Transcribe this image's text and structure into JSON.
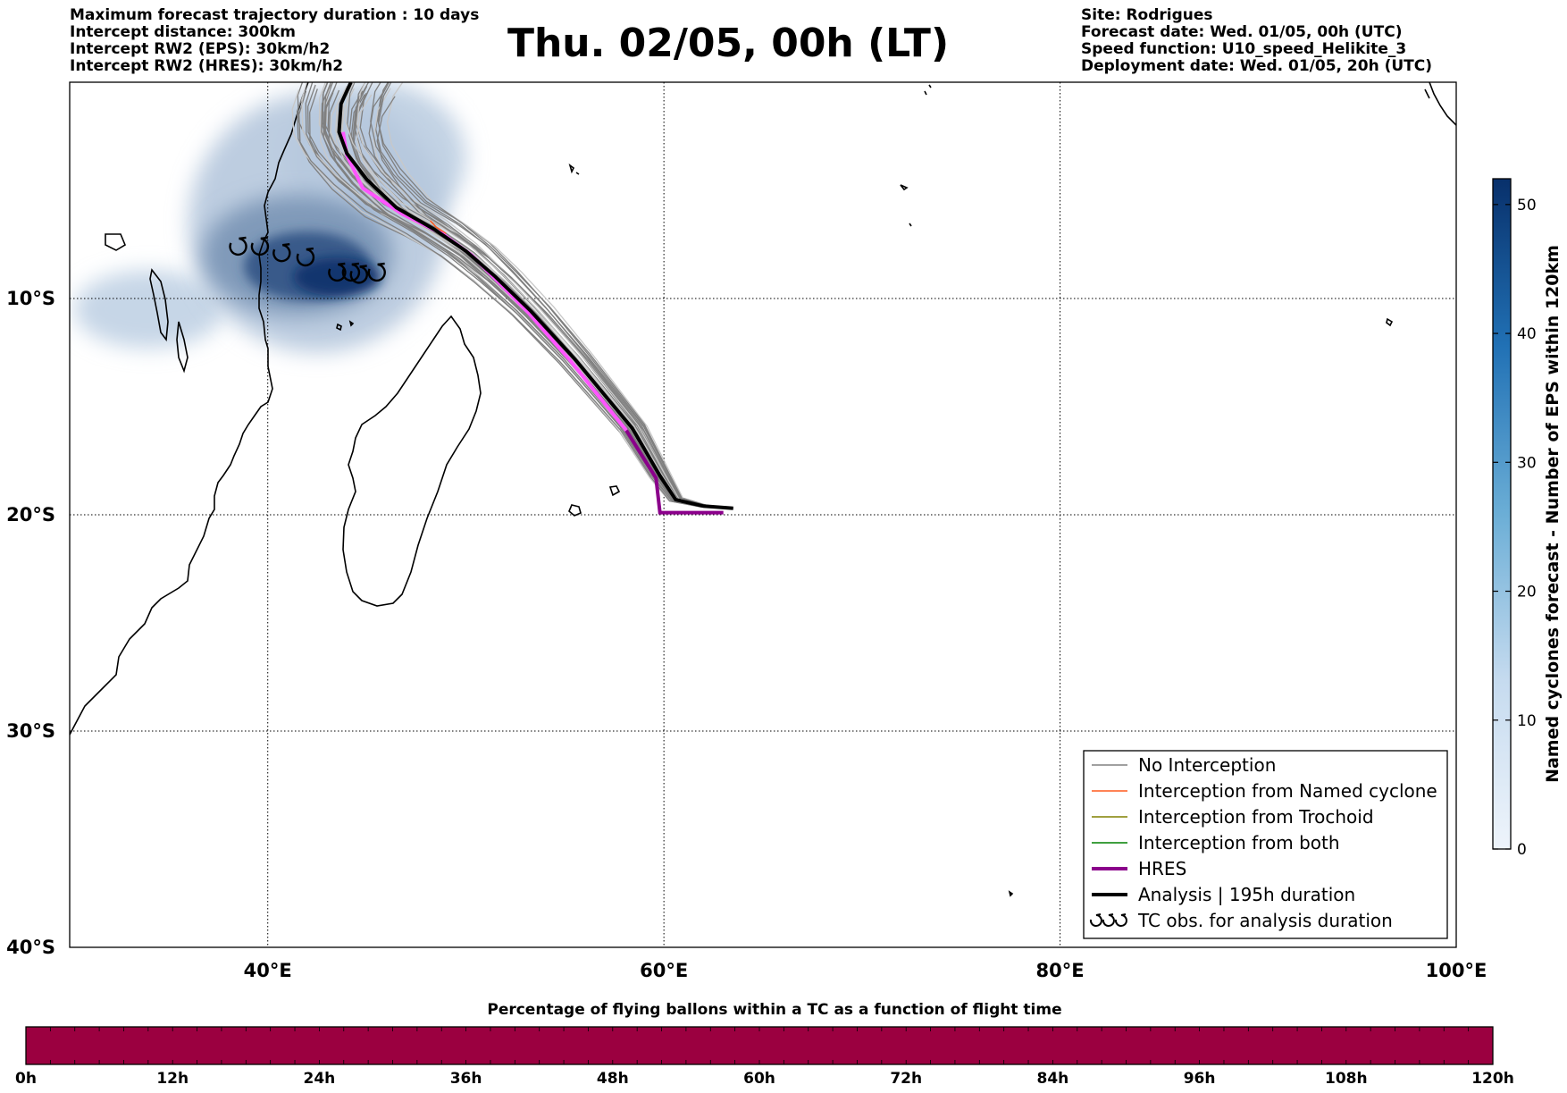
{
  "header": {
    "left_lines": [
      "Maximum forecast trajectory duration : 10 days",
      "Intercept distance: 300km",
      "Intercept RW2 (EPS):  30km/h2",
      "Intercept RW2 (HRES): 30km/h2"
    ],
    "title": "Thu. 02/05, 00h (LT)",
    "right_lines": [
      "Site: Rodrigues",
      "Forecast date: Wed. 01/05, 00h (UTC)",
      "Speed function: U10_speed_Helikite_3",
      "Deployment date: Wed. 01/05, 20h (UTC)"
    ]
  },
  "map": {
    "lon_range": [
      30,
      100
    ],
    "lat_range": [
      -40,
      0
    ],
    "lat_ticks": [
      {
        "value": -10,
        "label": "10°S"
      },
      {
        "value": -20,
        "label": "20°S"
      },
      {
        "value": -30,
        "label": "30°S"
      },
      {
        "value": -40,
        "label": "40°S"
      }
    ],
    "lon_ticks": [
      {
        "value": 40,
        "label": "40°E"
      },
      {
        "value": 60,
        "label": "60°E"
      },
      {
        "value": 80,
        "label": "80°E"
      },
      {
        "value": 100,
        "label": "100°E"
      }
    ],
    "colors": {
      "no_interception": "#808080",
      "named_cyclone": "#ff5a1e",
      "trochoid": "#808000",
      "both": "#008000",
      "hres": "#8b008b",
      "hres_early": "#ff55ff",
      "analysis": "#000000",
      "eps_light": "#dbe9f6",
      "eps_dark": "#08306b"
    },
    "analysis_track": [
      [
        63.5,
        -19.7
      ],
      [
        62,
        -19.6
      ],
      [
        60.6,
        -19.3
      ],
      [
        59.8,
        -18.2
      ],
      [
        58.4,
        -16.0
      ],
      [
        55.5,
        -12.8
      ],
      [
        53.3,
        -10.6
      ],
      [
        51.5,
        -9.0
      ],
      [
        50.0,
        -7.8
      ],
      [
        48.4,
        -6.8
      ],
      [
        46.5,
        -5.8
      ],
      [
        45.0,
        -4.5
      ],
      [
        44.0,
        -3.3
      ],
      [
        43.6,
        -2.3
      ],
      [
        43.7,
        -1.0
      ],
      [
        44.2,
        0
      ]
    ],
    "hres_track": [
      [
        63.0,
        -19.9
      ],
      [
        61.5,
        -19.9
      ],
      [
        59.8,
        -19.9
      ],
      [
        59.6,
        -18.3
      ],
      [
        58.1,
        -16.1
      ],
      [
        55.3,
        -12.9
      ],
      [
        53.2,
        -10.7
      ],
      [
        51.6,
        -9.2
      ],
      [
        50.3,
        -8.0
      ],
      [
        48.8,
        -7.0
      ],
      [
        46.8,
        -6.1
      ],
      [
        44.8,
        -4.9
      ],
      [
        44.0,
        -3.4
      ],
      [
        43.8,
        -2.3
      ]
    ],
    "tc_obs": [
      [
        38.5,
        -7.6
      ],
      [
        39.6,
        -7.6
      ],
      [
        40.7,
        -7.9
      ],
      [
        41.9,
        -8.1
      ],
      [
        43.5,
        -8.8
      ],
      [
        44.2,
        -8.8
      ],
      [
        44.6,
        -8.9
      ],
      [
        45.5,
        -8.8
      ]
    ],
    "eps_blobs": [
      {
        "lon": 43.5,
        "lat": -9.0,
        "rx": 2.2,
        "ry": 0.9,
        "level": 52
      },
      {
        "lon": 42.0,
        "lat": -8.5,
        "rx": 3.2,
        "ry": 1.6,
        "level": 40
      },
      {
        "lon": 41.5,
        "lat": -8.0,
        "rx": 4.8,
        "ry": 2.8,
        "level": 20
      },
      {
        "lon": 42.5,
        "lat": -6.5,
        "rx": 6.5,
        "ry": 6.0,
        "level": 6
      },
      {
        "lon": 34.0,
        "lat": -10.5,
        "rx": 3.8,
        "ry": 1.8,
        "level": 4
      },
      {
        "lon": 45.5,
        "lat": -3.5,
        "rx": 4.5,
        "ry": 3.5,
        "level": 5
      }
    ]
  },
  "legend": {
    "items": [
      {
        "label": "No Interception",
        "color": "#808080",
        "width": 1.5,
        "type": "line"
      },
      {
        "label": "Interception from Named cyclone",
        "color": "#ff5a1e",
        "width": 1.5,
        "type": "line"
      },
      {
        "label": "Interception from Trochoid",
        "color": "#808000",
        "width": 1.5,
        "type": "line"
      },
      {
        "label": "Interception from both",
        "color": "#008000",
        "width": 1.5,
        "type": "line"
      },
      {
        "label": "HRES",
        "color": "#8b008b",
        "width": 4,
        "type": "line"
      },
      {
        "label": "Analysis | 195h duration",
        "color": "#000000",
        "width": 4,
        "type": "line"
      },
      {
        "label": "TC obs. for analysis duration",
        "color": "#000000",
        "width": 2,
        "type": "symbol"
      }
    ]
  },
  "colorbar": {
    "title": "Named cyclones forecast - Number of EPS within 120km",
    "min": 0,
    "max": 52,
    "ticks": [
      0,
      10,
      20,
      30,
      40,
      50
    ]
  },
  "time_bar": {
    "title": "Percentage of flying ballons within a TC as a function of flight time",
    "color": "#9b0040",
    "labels": [
      "0h",
      "12h",
      "24h",
      "36h",
      "48h",
      "60h",
      "72h",
      "84h",
      "96h",
      "108h",
      "120h"
    ]
  }
}
